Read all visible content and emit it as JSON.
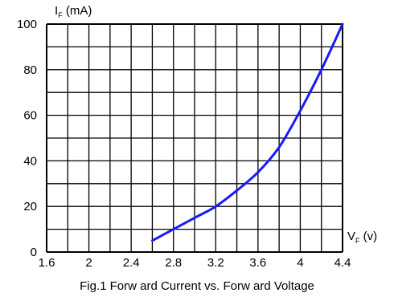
{
  "chart_data": {
    "type": "line",
    "title": "Fig.1 Forw ard Current vs. Forw ard Voltage",
    "xlabel": {
      "main": "V",
      "sub": "F",
      "unit": " (v)"
    },
    "ylabel": {
      "main": "I",
      "sub": "F",
      "unit": " (mA)"
    },
    "xlim": [
      1.6,
      4.4
    ],
    "ylim": [
      0,
      100
    ],
    "x_ticks": [
      1.6,
      2,
      2.4,
      2.8,
      3.2,
      3.6,
      4,
      4.4
    ],
    "x_tick_labels": [
      "1.6",
      "2",
      "2.4",
      "2.8",
      "3.2",
      "3.6",
      "4",
      "4.4"
    ],
    "y_ticks": [
      0,
      20,
      40,
      60,
      80,
      100
    ],
    "y_tick_labels": [
      "0",
      "20",
      "40",
      "60",
      "80",
      "100"
    ],
    "grid": {
      "x_step": 0.2,
      "y_step": 10,
      "visible": true
    },
    "series": [
      {
        "color": "#1a1aff",
        "x": [
          2.6,
          2.8,
          3.0,
          3.2,
          3.4,
          3.6,
          3.8,
          4.0,
          4.2,
          4.4
        ],
        "y": [
          5,
          10,
          15,
          20,
          27,
          35,
          46,
          62,
          80,
          100
        ]
      }
    ]
  }
}
